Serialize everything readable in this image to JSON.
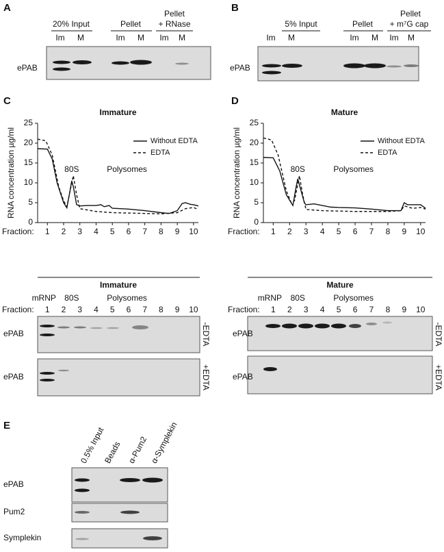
{
  "panel_a": {
    "label": "A",
    "groups": [
      "20% Input",
      "Pellet",
      "Pellet",
      "+ RNase"
    ],
    "lanes": [
      "Im",
      "M",
      "Im",
      "M",
      "Im",
      "M"
    ],
    "rows": [
      "ePAB"
    ]
  },
  "panel_b": {
    "label": "B",
    "groups": [
      "5% Input",
      "Pellet",
      "Pellet",
      "+ m⁷G cap"
    ],
    "lanes": [
      "Im",
      "M",
      "Im",
      "M",
      "Im",
      "M"
    ],
    "rows": [
      "ePAB"
    ]
  },
  "panel_c": {
    "label": "C",
    "blot_title": "Immature",
    "groups": [
      "mRNP",
      "80S",
      "Polysomes"
    ],
    "fraction_label": "Fraction:",
    "fractions": [
      "1",
      "2",
      "3",
      "4",
      "5",
      "6",
      "7",
      "8",
      "9",
      "10"
    ],
    "rows": [
      "ePAB",
      "ePAB"
    ],
    "conditions": [
      "-EDTA",
      "+EDTA"
    ]
  },
  "panel_d": {
    "label": "D",
    "blot_title": "Mature",
    "groups": [
      "mRNP",
      "80S",
      "Polysomes"
    ],
    "fraction_label": "Fraction:",
    "fractions": [
      "1",
      "2",
      "3",
      "4",
      "5",
      "6",
      "7",
      "8",
      "9",
      "10"
    ],
    "rows": [
      "ePAB",
      "ePAB"
    ],
    "conditions": [
      "-EDTA",
      "+EDTA"
    ]
  },
  "panel_e": {
    "label": "E",
    "lanes": [
      "0.5% Input",
      "Beads",
      "α-Pum2",
      "α-Symplekin"
    ],
    "rows": [
      "ePAB",
      "Pum2",
      "Symplekin"
    ]
  },
  "chart_data": [
    {
      "type": "line",
      "title": "Immature",
      "ylabel": "RNA concentration µg/ml",
      "xlabel": "Fraction:",
      "xlim": [
        0.4,
        10.3
      ],
      "ylim": [
        0,
        25
      ],
      "xticks": [
        1,
        2,
        3,
        4,
        5,
        6,
        7,
        8,
        9,
        10
      ],
      "yticks": [
        0,
        5,
        10,
        15,
        20,
        25
      ],
      "legend": "upper right",
      "annotations": [
        "80S",
        "Polysomes"
      ],
      "series": [
        {
          "name": "Without EDTA",
          "color": "#111111",
          "style": "solid",
          "x": [
            0.4,
            1.0,
            1.3,
            1.6,
            2.0,
            2.2,
            2.35,
            2.5,
            2.6,
            2.8,
            3.0,
            3.5,
            4.0,
            4.3,
            4.5,
            4.8,
            5.0,
            6.0,
            7.0,
            8.0,
            8.5,
            9.0,
            9.3,
            9.5,
            9.8,
            10.0,
            10.3
          ],
          "values": [
            18.6,
            18.5,
            16,
            10,
            5,
            3.7,
            7,
            10.5,
            9,
            4.5,
            4.2,
            4.3,
            4.3,
            4.5,
            4,
            4.3,
            3.6,
            3.4,
            3.0,
            2.5,
            2.3,
            3.0,
            4.8,
            5.0,
            4.6,
            4.5,
            4.2
          ]
        },
        {
          "name": "EDTA",
          "color": "#111111",
          "style": "dashed",
          "x": [
            0.4,
            0.9,
            1.3,
            1.7,
            2.0,
            2.2,
            2.4,
            2.6,
            2.8,
            3.0,
            4.0,
            5.0,
            6.0,
            7.0,
            8.0,
            9.0,
            9.5,
            10.0,
            10.3
          ],
          "values": [
            21,
            20.6,
            17,
            9,
            5.5,
            4,
            8,
            11.8,
            7,
            3.5,
            2.8,
            2.5,
            2.4,
            2.3,
            2.2,
            2.5,
            3.5,
            3.8,
            3.3
          ]
        }
      ]
    },
    {
      "type": "line",
      "title": "Mature",
      "ylabel": "RNA concentration µg/ml",
      "xlabel": "Fraction:",
      "xlim": [
        0.4,
        10.3
      ],
      "ylim": [
        0,
        25
      ],
      "xticks": [
        1,
        2,
        3,
        4,
        5,
        6,
        7,
        8,
        9,
        10
      ],
      "yticks": [
        0,
        5,
        10,
        15,
        20,
        25
      ],
      "legend": "upper right",
      "annotations": [
        "80S",
        "Polysomes"
      ],
      "series": [
        {
          "name": "Without EDTA",
          "color": "#111111",
          "style": "solid",
          "x": [
            0.4,
            1.0,
            1.4,
            1.8,
            2.2,
            2.4,
            2.5,
            2.7,
            2.9,
            3.0,
            3.5,
            4.0,
            4.5,
            5.0,
            6.0,
            7.0,
            8.0,
            8.8,
            9.0,
            9.2,
            9.5,
            10.0,
            10.3
          ],
          "values": [
            16.4,
            16.3,
            13,
            7,
            4.3,
            9,
            11,
            8,
            5,
            4.5,
            4.7,
            4.3,
            3.9,
            3.8,
            3.7,
            3.4,
            3.0,
            3.0,
            5,
            4.5,
            4.5,
            4.5,
            3.6
          ]
        },
        {
          "name": "EDTA",
          "color": "#111111",
          "style": "dashed",
          "x": [
            0.4,
            0.9,
            1.3,
            1.8,
            2.1,
            2.3,
            2.6,
            2.8,
            3.0,
            4.0,
            5.0,
            6.0,
            7.0,
            8.0,
            8.8,
            9.0,
            9.5,
            10.0,
            10.3
          ],
          "values": [
            21.3,
            20.8,
            17,
            8,
            5,
            5.5,
            11.8,
            7,
            3.3,
            3.0,
            2.9,
            2.8,
            2.8,
            2.8,
            3.0,
            4.2,
            3.6,
            3.8,
            3.4
          ]
        }
      ]
    }
  ]
}
